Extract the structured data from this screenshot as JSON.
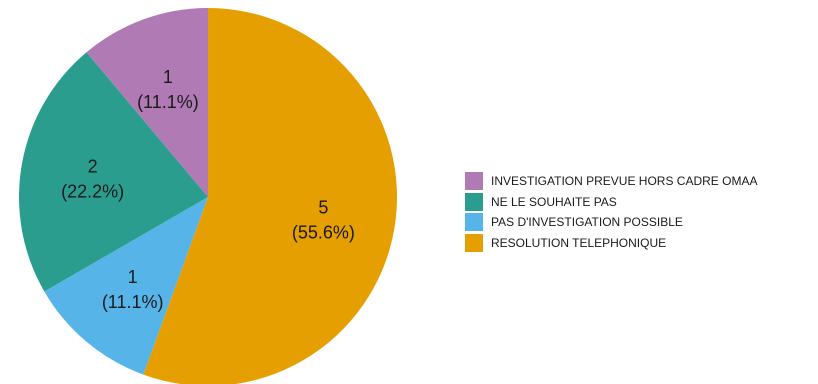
{
  "chart_data": {
    "type": "pie",
    "categories": [
      "RESOLUTION TELEPHONIQUE",
      "PAS D'INVESTIGATION POSSIBLE",
      "NE LE SOUHAITE PAS",
      "INVESTIGATION PREVUE HORS CADRE OMAA"
    ],
    "values": [
      5,
      1,
      2,
      1
    ],
    "slice_labels": [
      {
        "count": "5",
        "percent": "(55.6%)"
      },
      {
        "count": "1",
        "percent": "(11.1%)"
      },
      {
        "count": "2",
        "percent": "(22.2%)"
      },
      {
        "count": "1",
        "percent": "(11.1%)"
      }
    ],
    "colors": [
      "#E69F00",
      "#56B4E9",
      "#2A9D8F",
      "#B07AB5"
    ],
    "start": "12 o'clock, clockwise",
    "legend_placement": "right",
    "legend": [
      {
        "label": "INVESTIGATION PREVUE HORS CADRE OMAA",
        "color": "#B07AB5"
      },
      {
        "label": "NE LE SOUHAITE PAS",
        "color": "#2A9D8F"
      },
      {
        "label": "PAS D'INVESTIGATION POSSIBLE",
        "color": "#56B4E9"
      },
      {
        "label": "RESOLUTION TELEPHONIQUE",
        "color": "#E69F00"
      }
    ]
  }
}
